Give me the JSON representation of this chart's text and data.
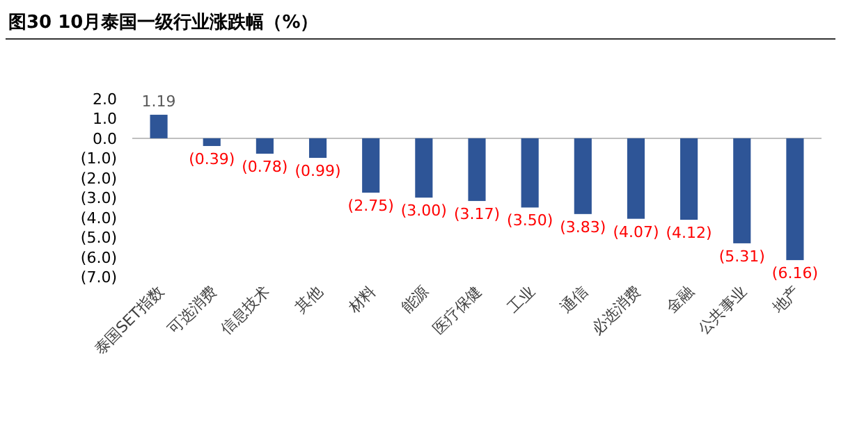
{
  "chart_data": {
    "type": "bar",
    "title": "图30 10月泰国一级行业涨跌幅（%）",
    "categories": [
      "泰国SET指数",
      "可选消费",
      "信息技术",
      "其他",
      "材料",
      "能源",
      "医疗保健",
      "工业",
      "通信",
      "必选消费",
      "金融",
      "公共事业",
      "地产"
    ],
    "values": [
      1.19,
      -0.39,
      -0.78,
      -0.99,
      -2.75,
      -3.0,
      -3.17,
      -3.5,
      -3.83,
      -4.07,
      -4.12,
      -5.31,
      -6.16
    ],
    "value_labels": [
      "1.19",
      "(0.39)",
      "(0.78)",
      "(0.99)",
      "(2.75)",
      "(3.00)",
      "(3.17)",
      "(3.50)",
      "(3.83)",
      "(4.07)",
      "(4.12)",
      "(5.31)",
      "(6.16)"
    ],
    "color": "#2e5597",
    "ylim": [
      -7,
      2
    ],
    "yticks": [
      {
        "value": 2,
        "label": "2.0"
      },
      {
        "value": 1,
        "label": "1.0"
      },
      {
        "value": 0,
        "label": "0.0"
      },
      {
        "value": -1,
        "label": "(1.0)"
      },
      {
        "value": -2,
        "label": "(2.0)"
      },
      {
        "value": -3,
        "label": "(3.0)"
      },
      {
        "value": -4,
        "label": "(4.0)"
      },
      {
        "value": -5,
        "label": "(5.0)"
      },
      {
        "value": -6,
        "label": "(6.0)"
      },
      {
        "value": -7,
        "label": "(7.0)"
      }
    ]
  }
}
